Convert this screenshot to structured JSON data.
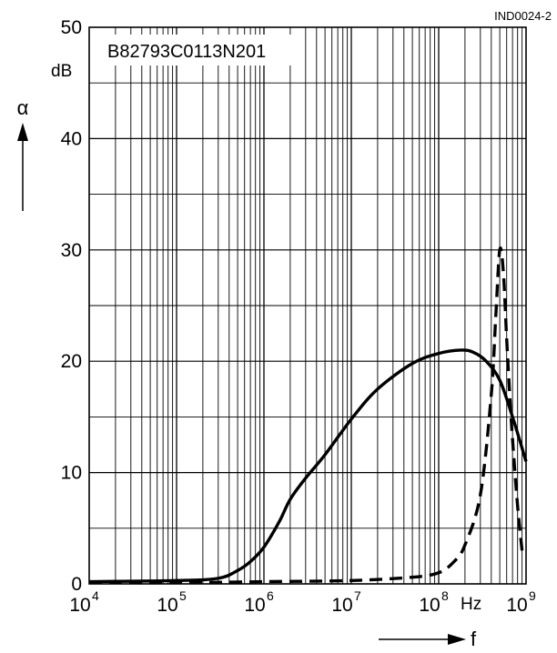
{
  "figure_id": "IND0024-2",
  "chart_data": {
    "type": "line",
    "title": "B82793C0113N201",
    "xlabel": "f",
    "ylabel": "α",
    "x_unit": "Hz",
    "y_unit": "dB",
    "x_scale": "log",
    "xlim": [
      10000,
      1000000000
    ],
    "ylim": [
      0,
      50
    ],
    "grid": true,
    "x_ticks": [
      {
        "value": 10000,
        "base": "10",
        "exp": "4"
      },
      {
        "value": 100000,
        "base": "10",
        "exp": "5"
      },
      {
        "value": 1000000,
        "base": "10",
        "exp": "6"
      },
      {
        "value": 10000000,
        "base": "10",
        "exp": "7"
      },
      {
        "value": 100000000,
        "base": "10",
        "exp": "8"
      },
      {
        "value": 1000000000,
        "base": "10",
        "exp": "9"
      }
    ],
    "y_ticks": [
      "0",
      "10",
      "20",
      "30",
      "40",
      "50"
    ],
    "series": [
      {
        "style": "solid",
        "x": [
          10000,
          100000,
          300000,
          500000,
          700000,
          1000000,
          1500000,
          2000000,
          3000000,
          5000000,
          10000000,
          20000000,
          50000000,
          100000000,
          180000000,
          250000000,
          350000000,
          500000000,
          700000000,
          1000000000
        ],
        "y": [
          0.2,
          0.3,
          0.5,
          1.2,
          2.0,
          3.3,
          5.6,
          7.6,
          9.5,
          11.6,
          14.8,
          17.5,
          19.8,
          20.7,
          21.0,
          20.8,
          20.0,
          18.3,
          15.0,
          11.0
        ]
      },
      {
        "style": "dashed",
        "x": [
          10000,
          100000,
          1000000,
          10000000,
          50000000,
          100000000,
          150000000,
          200000000,
          300000000,
          400000000,
          450000000,
          500000000,
          550000000,
          600000000,
          650000000,
          700000000,
          800000000,
          900000000
        ],
        "y": [
          0.1,
          0.1,
          0.2,
          0.3,
          0.6,
          1.0,
          2.0,
          3.5,
          8.0,
          17.0,
          24.0,
          30.0,
          28.0,
          22.0,
          17.0,
          13.0,
          7.0,
          3.0
        ]
      }
    ]
  }
}
